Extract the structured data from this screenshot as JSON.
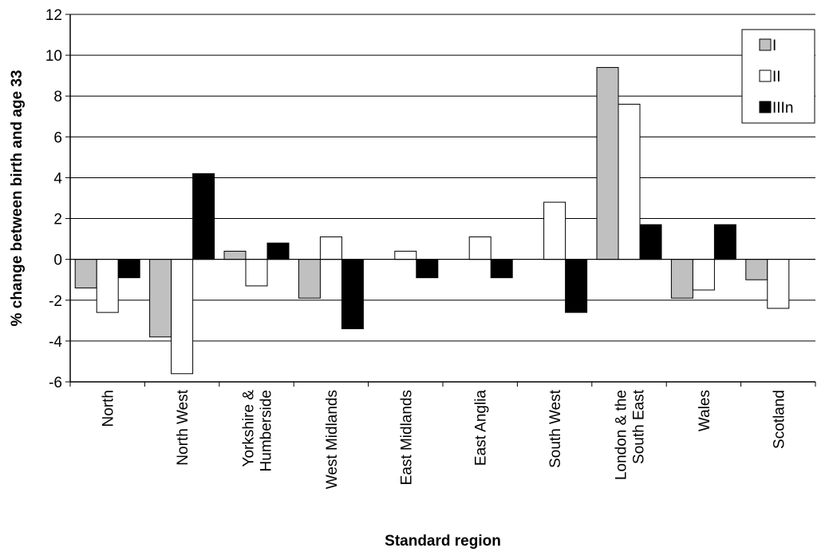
{
  "chart_data": {
    "type": "bar",
    "title": "",
    "xlabel": "Standard region",
    "ylabel": "% change between birth and age 33",
    "ylim": [
      -6,
      12
    ],
    "yticks": [
      12,
      10,
      8,
      6,
      4,
      2,
      0,
      -2,
      -4,
      -6
    ],
    "grid": true,
    "legend_position": "top-right",
    "categories": [
      [
        "North"
      ],
      [
        "North West"
      ],
      [
        "Yorkshire &",
        "Humberside"
      ],
      [
        "West Midlands"
      ],
      [
        "East Midlands"
      ],
      [
        "East Anglia"
      ],
      [
        "South West"
      ],
      [
        "London & the",
        "South East"
      ],
      [
        "Wales"
      ],
      [
        "Scotland"
      ]
    ],
    "series": [
      {
        "name": "I",
        "color": "#c0c0c0",
        "values": [
          -1.4,
          -3.8,
          0.4,
          -1.9,
          0,
          0,
          0,
          9.4,
          -1.9,
          -1.0
        ]
      },
      {
        "name": "II",
        "color": "#ffffff",
        "values": [
          -2.6,
          -5.6,
          -1.3,
          1.1,
          0.4,
          1.1,
          2.8,
          7.6,
          -1.5,
          -2.4
        ]
      },
      {
        "name": "IIIn",
        "color": "#000000",
        "values": [
          -0.9,
          4.2,
          0.8,
          -3.4,
          -0.9,
          -0.9,
          -2.6,
          1.7,
          1.7,
          null
        ]
      }
    ]
  }
}
